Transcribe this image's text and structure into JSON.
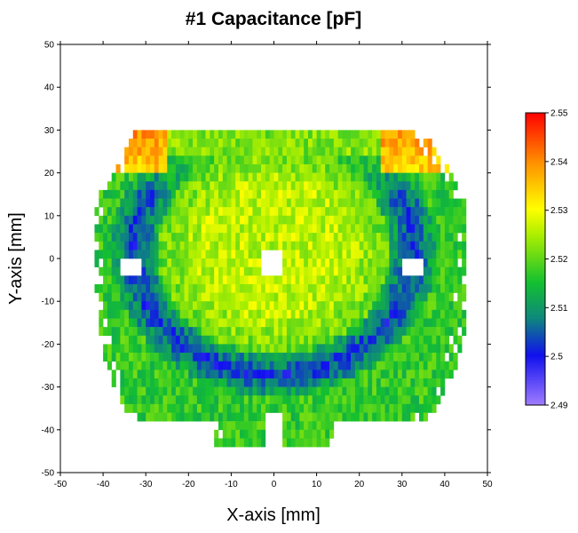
{
  "chart_data": {
    "type": "heatmap",
    "title": "#1 Capacitance [pF]",
    "xlabel": "X-axis [mm]",
    "ylabel": "Y-axis [mm]",
    "xlim": [
      -50,
      50
    ],
    "ylim": [
      -50,
      50
    ],
    "xticks": [
      -50,
      -40,
      -30,
      -20,
      -10,
      0,
      10,
      20,
      30,
      40,
      50
    ],
    "yticks": [
      -50,
      -40,
      -30,
      -20,
      -10,
      0,
      10,
      20,
      30,
      40,
      50
    ],
    "colorbar": {
      "min": 2.49,
      "max": 2.55,
      "ticks": [
        "2.49",
        "2.5",
        "2.51",
        "2.52",
        "2.53",
        "2.54",
        "2.55"
      ],
      "colors": [
        "#9b6cff",
        "#1414e6",
        "#0fa05a",
        "#22dd11",
        "#ffff00",
        "#ff8800",
        "#ff0000"
      ]
    },
    "grid_step_mm": [
      1,
      2
    ],
    "region": {
      "shape": "rounded wafer-like pad, flat top at y=30, notch at bottom center",
      "x_extent": [
        -42,
        45
      ],
      "y_extent": [
        -44,
        30
      ],
      "holes": [
        {
          "x": [
            -36,
            -31
          ],
          "y": [
            -4,
            0
          ]
        },
        {
          "x": [
            30,
            35
          ],
          "y": [
            -4,
            0
          ]
        },
        {
          "x": [
            -3,
            2
          ],
          "y": [
            -4,
            2
          ]
        },
        {
          "x": [
            -2,
            1
          ],
          "y": [
            -44,
            -35
          ]
        }
      ]
    },
    "value_pattern": {
      "center_plateau": 2.526,
      "mid_ring": 2.52,
      "low_ring_bottom_sides": 2.502,
      "outer_edge": 2.517,
      "top_edge_corners": 2.54
    }
  }
}
